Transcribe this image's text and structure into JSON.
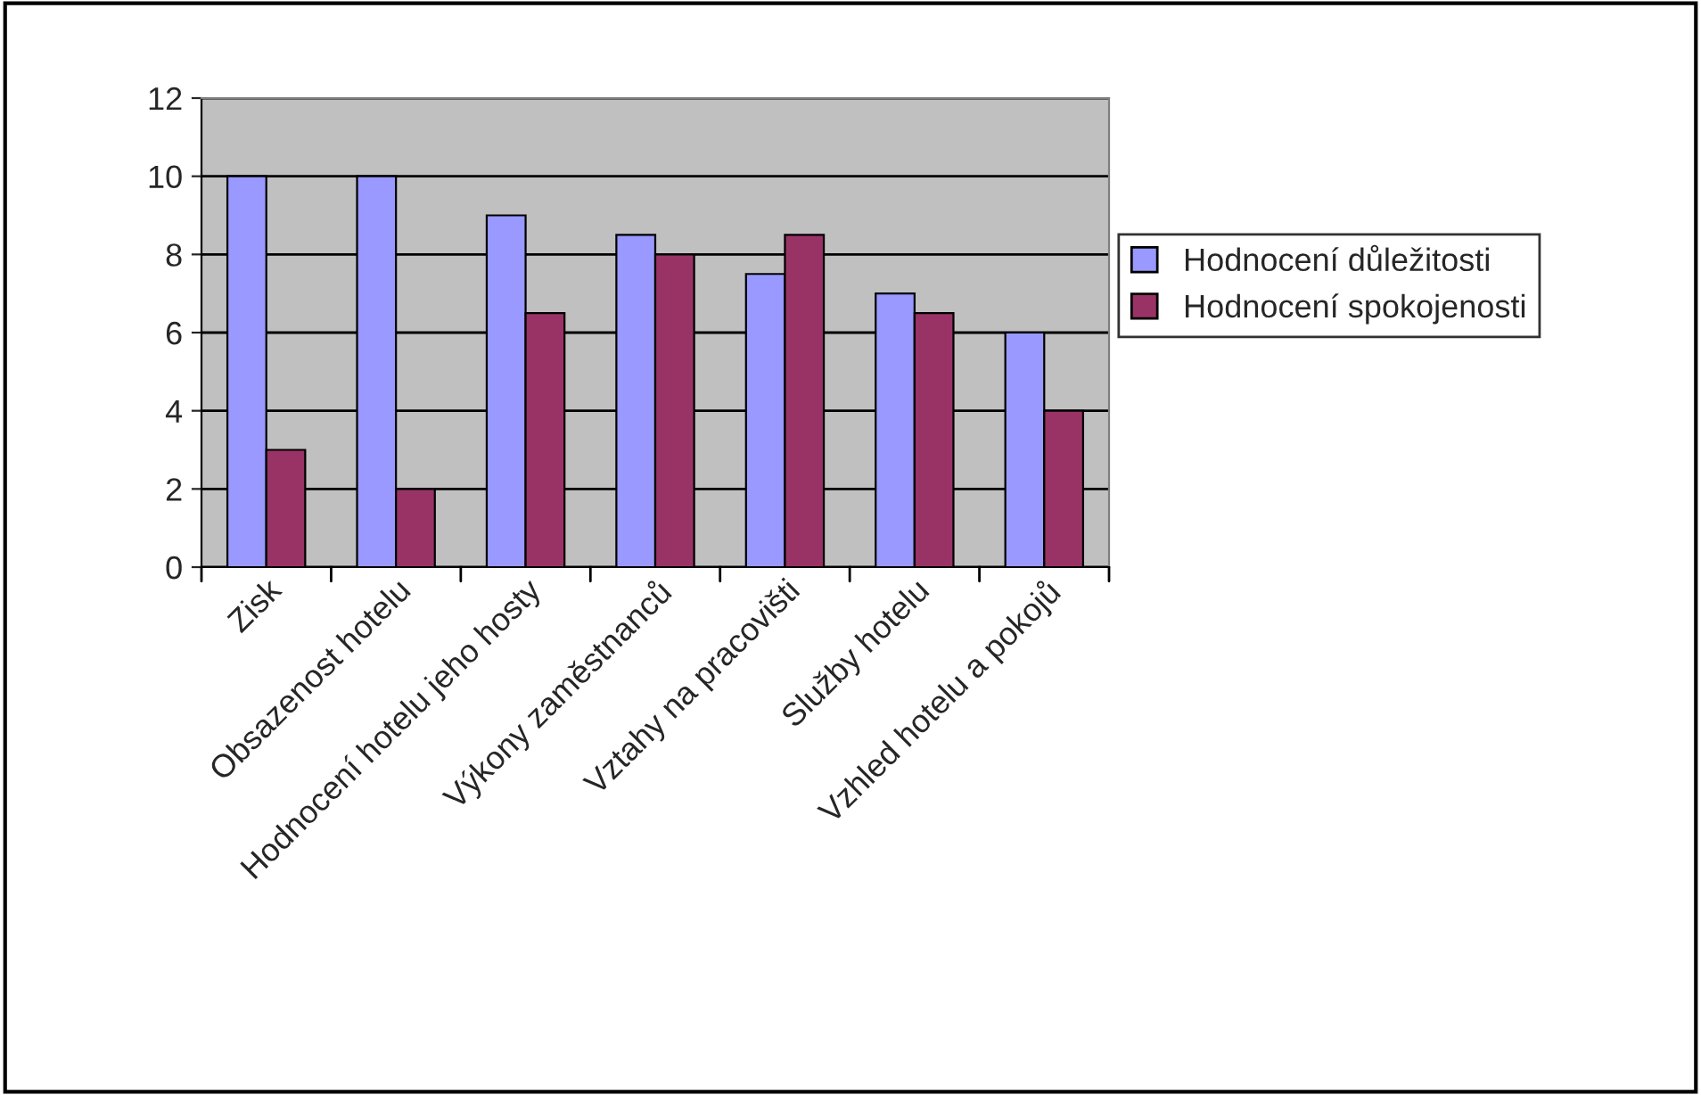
{
  "chart_data": {
    "type": "bar",
    "categories": [
      "Zisk",
      "Obsazenost hotelu",
      "Hodnocení hotelu jeho hosty",
      "Výkony zaměstnanců",
      "Vztahy na pracovišti",
      "Služby hotelu",
      "Vzhled hotelu a pokojů"
    ],
    "series": [
      {
        "name": "Hodnocení důležitosti",
        "color": "#9999ff",
        "values": [
          10,
          10,
          9,
          8.5,
          7.5,
          7,
          6
        ]
      },
      {
        "name": "Hodnocení spokojenosti",
        "color": "#993366",
        "values": [
          3,
          2,
          6.5,
          8,
          8.5,
          6.5,
          4
        ]
      }
    ],
    "ylim": [
      0,
      12
    ],
    "yticks": [
      0,
      2,
      4,
      6,
      8,
      10,
      12
    ],
    "grid": "y",
    "legend": "right"
  }
}
